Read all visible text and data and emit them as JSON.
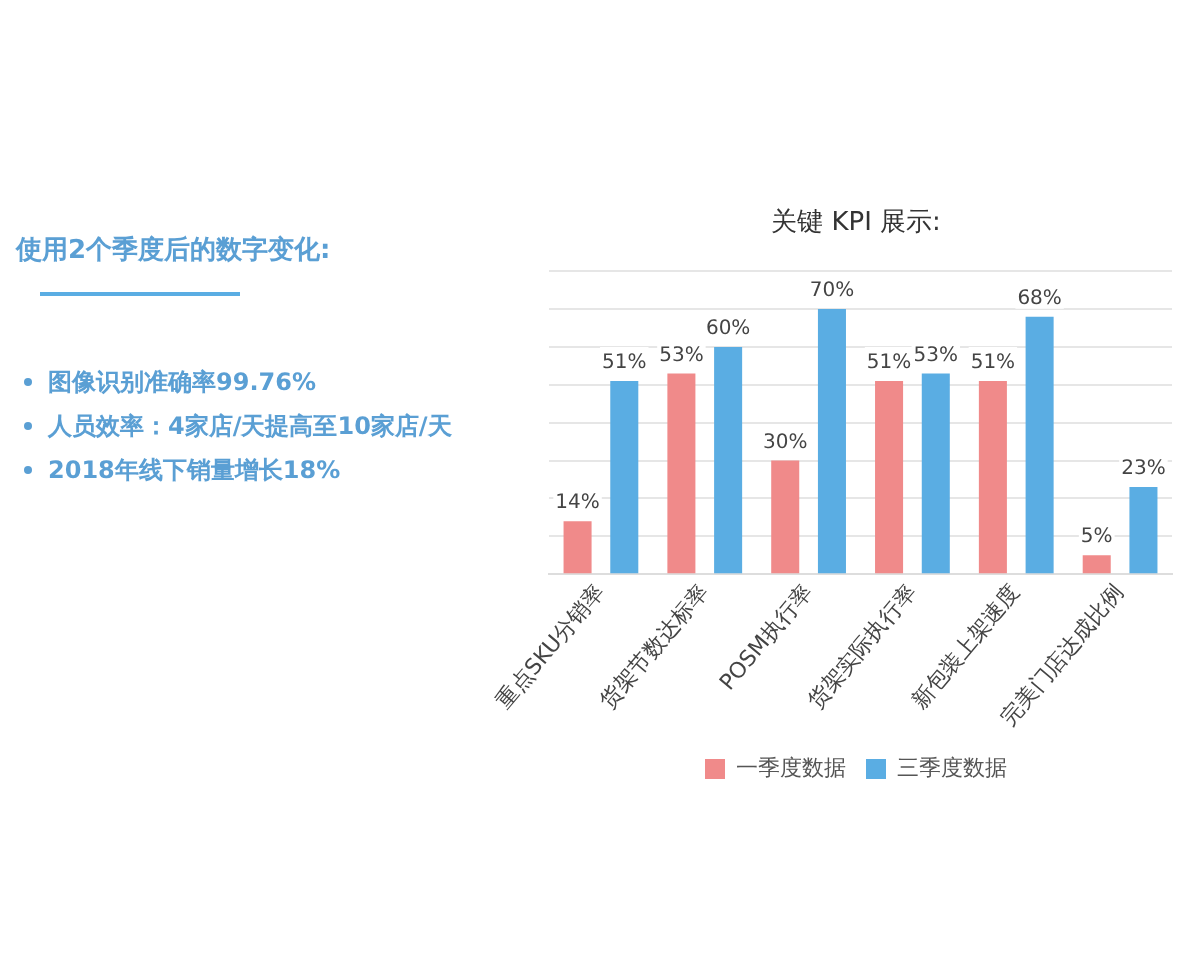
{
  "chart_data": {
    "type": "bar",
    "title": "关键 KPI 展示:",
    "categories": [
      "重点SKU分销率",
      "货架节数达标率",
      "POSM执行率",
      "货架实际执行率",
      "新包装上架速度",
      "完美门店达成比例"
    ],
    "series": [
      {
        "name": "一季度数据",
        "color": "#f08a8a",
        "values": [
          14,
          53,
          30,
          51,
          51,
          5
        ],
        "value_labels": [
          "14%",
          "53%",
          "30%",
          "51%",
          "51%",
          "5%"
        ]
      },
      {
        "name": "三季度数据",
        "color": "#5aade3",
        "values": [
          51,
          60,
          70,
          53,
          68,
          23
        ],
        "value_labels": [
          "51%",
          "60%",
          "70%",
          "53%",
          "68%",
          "23%"
        ]
      }
    ],
    "ylim": [
      0,
      80
    ],
    "yticks": [
      {
        "value": 0,
        "label": null
      },
      {
        "value": 10,
        "label": null
      },
      {
        "value": 20,
        "label": null
      },
      {
        "value": 30,
        "label": null
      },
      {
        "value": 40,
        "label": null
      },
      {
        "value": 50,
        "label": null
      },
      {
        "value": 60,
        "label": null
      },
      {
        "value": 70,
        "label": null
      },
      {
        "value": 80,
        "label": null
      }
    ],
    "tick_labels": "x",
    "grid": "y",
    "legend": "bottom",
    "annotations": [
      "使用2个季度后的数字变化:",
      "图像识别准确率99.76%",
      "人员效率：4家店/天提高至10家店/天",
      "2018年线下销量增长18%"
    ]
  }
}
